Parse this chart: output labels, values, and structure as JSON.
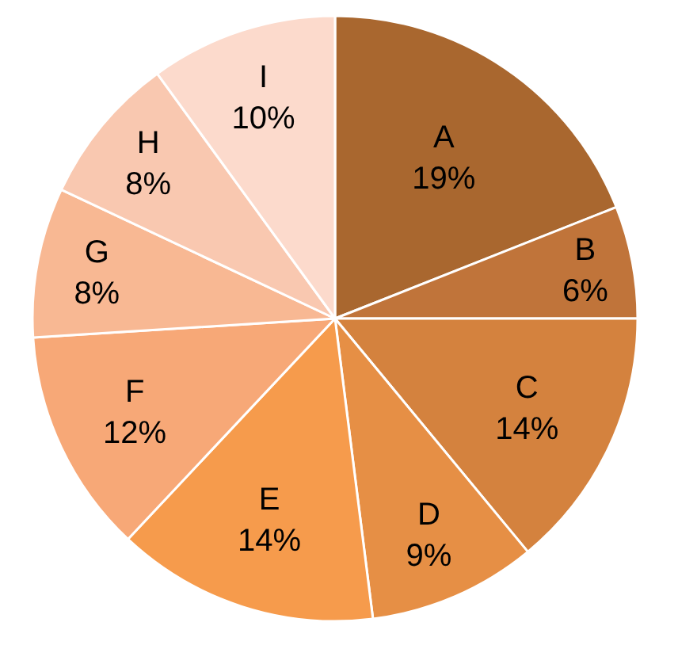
{
  "chart_data": {
    "type": "pie",
    "categories": [
      "A",
      "B",
      "C",
      "D",
      "E",
      "F",
      "G",
      "H",
      "I"
    ],
    "values": [
      19,
      6,
      14,
      9,
      14,
      12,
      8,
      8,
      10
    ],
    "value_labels": [
      "19%",
      "6%",
      "14%",
      "9%",
      "14%",
      "12%",
      "8%",
      "8%",
      "10%"
    ],
    "colors": [
      "#a9672f",
      "#c0743a",
      "#d4823e",
      "#e68f45",
      "#f69b4c",
      "#f7a877",
      "#f8b893",
      "#f9c8b0",
      "#fcdacc"
    ],
    "legend": false
  }
}
